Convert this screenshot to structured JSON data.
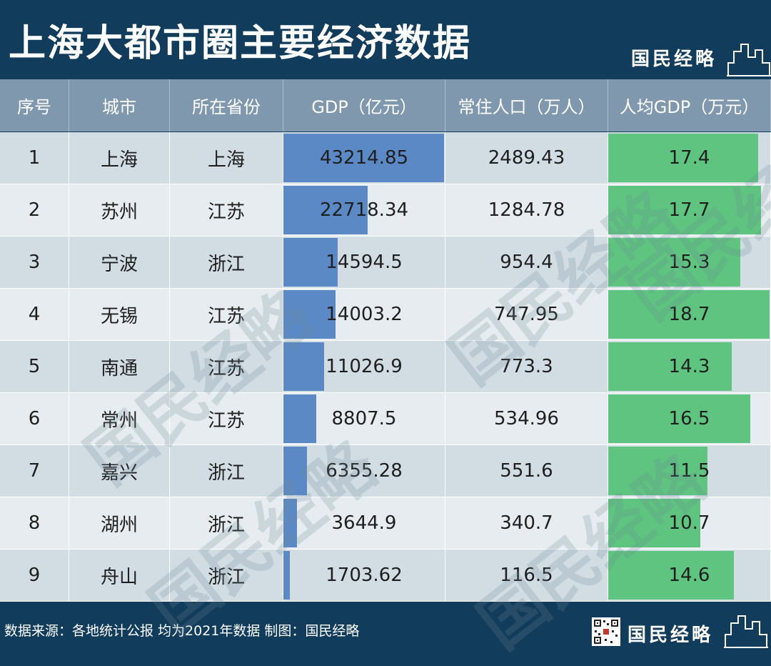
{
  "title": "上海大都市圈主要经济数据",
  "brand": "国民经略",
  "colors": {
    "background": "#123c5b",
    "header_bg": "#7f98ad",
    "gdp_bar": "#5b89c6",
    "per_capita_bar": "#5ec47f",
    "row_odd": "#d1dce3",
    "row_even": "#e6ecef"
  },
  "chart_data": {
    "type": "table",
    "columns": [
      "序号",
      "城市",
      "所在省份",
      "GDP（亿元）",
      "常住人口（万人）",
      "人均GDP（万元）"
    ],
    "rows": [
      {
        "rank": "1",
        "city": "上海",
        "province": "上海",
        "gdp": "43214.85",
        "population": "2489.43",
        "per_capita": "17.4"
      },
      {
        "rank": "2",
        "city": "苏州",
        "province": "江苏",
        "gdp": "22718.34",
        "population": "1284.78",
        "per_capita": "17.7"
      },
      {
        "rank": "3",
        "city": "宁波",
        "province": "浙江",
        "gdp": "14594.5",
        "population": "954.4",
        "per_capita": "15.3"
      },
      {
        "rank": "4",
        "city": "无锡",
        "province": "江苏",
        "gdp": "14003.2",
        "population": "747.95",
        "per_capita": "18.7"
      },
      {
        "rank": "5",
        "city": "南通",
        "province": "江苏",
        "gdp": "11026.9",
        "population": "773.3",
        "per_capita": "14.3"
      },
      {
        "rank": "6",
        "city": "常州",
        "province": "江苏",
        "gdp": "8807.5",
        "population": "534.96",
        "per_capita": "16.5"
      },
      {
        "rank": "7",
        "city": "嘉兴",
        "province": "浙江",
        "gdp": "6355.28",
        "population": "551.6",
        "per_capita": "11.5"
      },
      {
        "rank": "8",
        "city": "湖州",
        "province": "浙江",
        "gdp": "3644.9",
        "population": "340.7",
        "per_capita": "10.7"
      },
      {
        "rank": "9",
        "city": "舟山",
        "province": "浙江",
        "gdp": "1703.62",
        "population": "116.5",
        "per_capita": "14.6"
      }
    ],
    "bars": {
      "gdp_column": "data bars",
      "per_capita_column": "data bars"
    }
  },
  "footer": {
    "source": "数据来源：各地统计公报 均为2021年数据 制图：国民经略"
  },
  "icons": {
    "skyline": "skyline-icon",
    "qr": "qr-code-icon"
  }
}
